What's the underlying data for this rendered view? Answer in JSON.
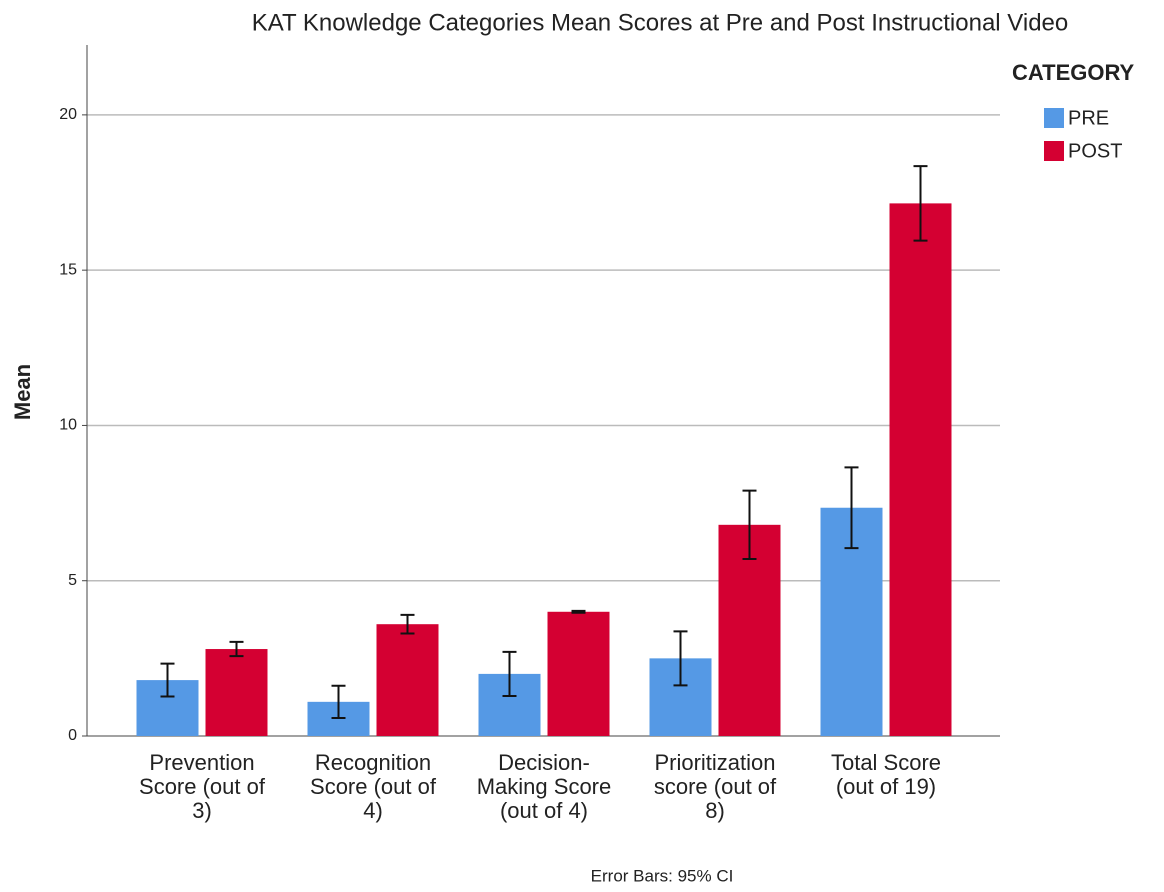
{
  "chart_data": {
    "type": "bar",
    "title": "KAT Knowledge Categories Mean Scores at Pre and Post Instructional Video",
    "y_label": "Mean",
    "annotation": "Error Bars: 95% CI",
    "legend_title": "CATEGORY",
    "legend": "upper right",
    "grid": true,
    "categories": [
      "Prevention Score (out of 3)",
      "Recognition Score (out of 4)",
      "Decision-Making Score (out of 4)",
      "Prioritization score (out of 8)",
      "Total Score (out of 19)"
    ],
    "series": [
      {
        "name": "PRE",
        "color": "#5599e5",
        "values": [
          1.8,
          1.1,
          2.0,
          2.5,
          7.35
        ],
        "errors": [
          0.53,
          0.52,
          0.71,
          0.87,
          1.3
        ]
      },
      {
        "name": "POST",
        "color": "#d40032",
        "values": [
          2.8,
          3.6,
          4.0,
          6.8,
          17.15
        ],
        "errors": [
          0.23,
          0.3,
          0.03,
          1.1,
          1.2
        ]
      }
    ],
    "ylim": [
      0,
      22.25
    ],
    "yticks": [
      0,
      5,
      10,
      15,
      20
    ]
  }
}
